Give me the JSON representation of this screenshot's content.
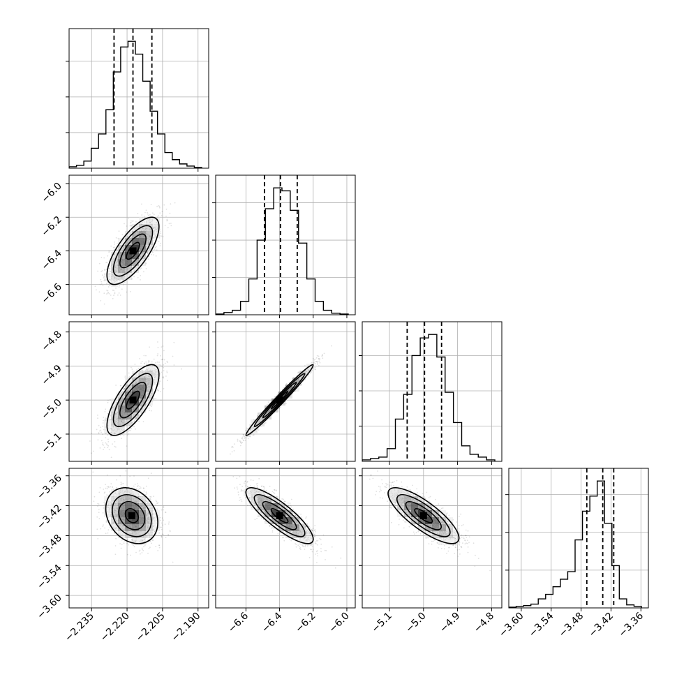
{
  "chart_data": {
    "type": "corner",
    "params": [
      {
        "ticks": [
          -2.235,
          -2.22,
          -2.205,
          -2.19
        ],
        "tick_labels": [
          "−2.235",
          "−2.220",
          "−2.205",
          "−2.190"
        ],
        "range": [
          -2.2445,
          -2.1855
        ]
      },
      {
        "ticks": [
          -6.6,
          -6.4,
          -6.2,
          -6.0
        ],
        "tick_labels": [
          "−6.6",
          "−6.4",
          "−6.2",
          "−6.0"
        ],
        "range": [
          -6.78,
          -5.95
        ]
      },
      {
        "ticks": [
          -5.1,
          -5.0,
          -4.9,
          -4.8
        ],
        "tick_labels": [
          "−5.1",
          "−5.0",
          "−4.9",
          "−4.8"
        ],
        "range": [
          -5.18,
          -4.77
        ]
      },
      {
        "ticks": [
          -3.6,
          -3.54,
          -3.48,
          -3.42,
          -3.36
        ],
        "tick_labels": [
          "−3.60",
          "−3.54",
          "−3.48",
          "−3.42",
          "−3.36"
        ],
        "range": [
          -3.625,
          -3.345
        ]
      }
    ],
    "hist": [
      {
        "counts": [
          2,
          4,
          10,
          28,
          48,
          82,
          135,
          170,
          178,
          160,
          122,
          80,
          48,
          22,
          12,
          6,
          3,
          1
        ],
        "quantiles": [
          -2.2255,
          -2.2175,
          -2.2095
        ]
      },
      {
        "counts": [
          1,
          3,
          6,
          18,
          48,
          100,
          142,
          170,
          166,
          140,
          96,
          48,
          18,
          6,
          2,
          1
        ],
        "quantiles": [
          -6.49,
          -6.395,
          -6.295
        ]
      },
      {
        "counts": [
          2,
          4,
          6,
          18,
          60,
          95,
          150,
          175,
          180,
          148,
          98,
          55,
          22,
          10,
          6,
          2
        ],
        "quantiles": [
          -5.048,
          -4.997,
          -4.947
        ]
      },
      {
        "counts": [
          1,
          2,
          3,
          5,
          12,
          18,
          28,
          38,
          48,
          90,
          128,
          148,
          168,
          112,
          56,
          12,
          4,
          2
        ],
        "quantiles": [
          -3.4685,
          -3.4365,
          -3.4145
        ]
      }
    ],
    "pairs": [
      {
        "x": 0,
        "y": 1,
        "center": [
          -2.2175,
          -6.4
        ],
        "sigma": [
          0.0055,
          0.1
        ],
        "rho": 0.72
      },
      {
        "x": 0,
        "y": 2,
        "center": [
          -2.2175,
          -5.0
        ],
        "sigma": [
          0.0055,
          0.052
        ],
        "rho": 0.72
      },
      {
        "x": 1,
        "y": 2,
        "center": [
          -6.4,
          -5.0
        ],
        "sigma": [
          0.1,
          0.052
        ],
        "rho": 0.985
      },
      {
        "x": 0,
        "y": 3,
        "center": [
          -2.218,
          -3.44
        ],
        "sigma": [
          0.0055,
          0.028
        ],
        "rho": -0.25
      },
      {
        "x": 1,
        "y": 3,
        "center": [
          -6.4,
          -3.44
        ],
        "sigma": [
          0.1,
          0.028
        ],
        "rho": -0.84
      },
      {
        "x": 2,
        "y": 3,
        "center": [
          -5.0,
          -3.44
        ],
        "sigma": [
          0.052,
          0.028
        ],
        "rho": -0.8
      }
    ],
    "grid": true,
    "xlabel": "",
    "ylabel": ""
  }
}
